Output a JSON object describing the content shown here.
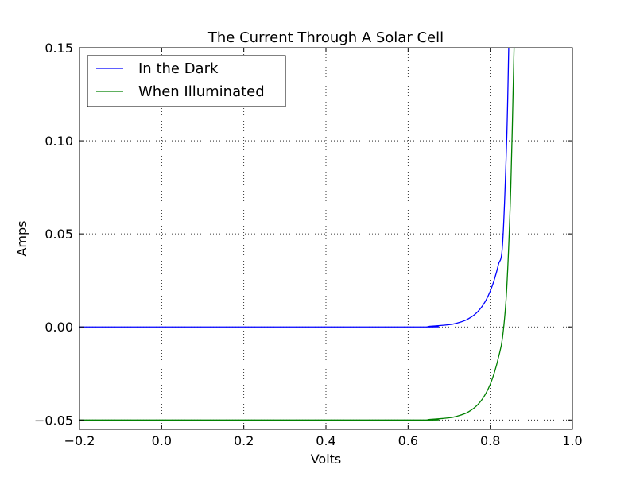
{
  "chart_data": {
    "type": "line",
    "title": "The Current Through A Solar Cell",
    "xlabel": "Volts",
    "ylabel": "Amps",
    "xlim": [
      -0.2,
      1.0
    ],
    "ylim": [
      -0.055,
      0.15
    ],
    "xticks": [
      -0.2,
      0.0,
      0.2,
      0.4,
      0.6,
      0.8,
      1.0
    ],
    "xtick_labels": [
      "−0.2",
      "0.0",
      "0.2",
      "0.4",
      "0.6",
      "0.8",
      "1.0"
    ],
    "yticks": [
      -0.05,
      0.0,
      0.05,
      0.1,
      0.15
    ],
    "ytick_labels": [
      "−0.05",
      "0.00",
      "0.05",
      "0.10",
      "0.15"
    ],
    "grid": true,
    "legend_position": "top-left",
    "series": [
      {
        "name": "In the Dark",
        "color": "#0000ff",
        "x": [
          -0.2,
          0.6,
          0.65,
          0.7,
          0.72,
          0.74,
          0.75,
          0.76,
          0.77,
          0.78,
          0.79,
          0.8,
          0.81,
          0.82,
          0.83,
          0.84,
          0.845
        ],
        "y": [
          0.0,
          0.0,
          0.0003,
          0.0012,
          0.0021,
          0.0036,
          0.0048,
          0.0063,
          0.0083,
          0.011,
          0.0145,
          0.0192,
          0.0254,
          0.0336,
          0.0444,
          0.1,
          0.15
        ]
      },
      {
        "name": "When Illuminated",
        "color": "#008000",
        "x": [
          -0.2,
          0.6,
          0.65,
          0.7,
          0.72,
          0.74,
          0.75,
          0.76,
          0.77,
          0.78,
          0.79,
          0.8,
          0.81,
          0.82,
          0.83,
          0.84,
          0.85,
          0.858
        ],
        "y": [
          -0.05,
          -0.05,
          -0.0497,
          -0.0488,
          -0.0479,
          -0.0464,
          -0.0452,
          -0.0437,
          -0.0417,
          -0.039,
          -0.0355,
          -0.0308,
          -0.0246,
          -0.0164,
          -0.0056,
          0.02,
          0.075,
          0.15
        ]
      }
    ]
  }
}
